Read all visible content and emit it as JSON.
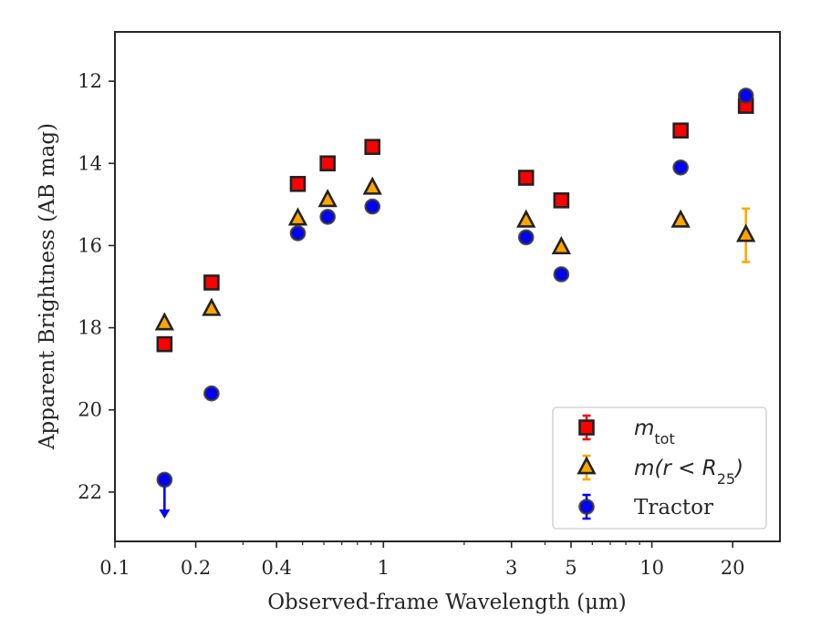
{
  "chart_data": {
    "type": "scatter",
    "title": "",
    "xlabel": "Observed-frame Wavelength (μm)",
    "ylabel": "Apparent Brightness (AB mag)",
    "xscale": "log",
    "xlim": [
      0.1,
      30
    ],
    "ylim": [
      23.2,
      10.8
    ],
    "y_inverted": true,
    "x_ticks": [
      0.1,
      0.2,
      0.4,
      1,
      3,
      5,
      10,
      20
    ],
    "x_tick_labels": [
      "0.1",
      "0.2",
      "0.4",
      "1",
      "3",
      "5",
      "10",
      "20"
    ],
    "y_ticks": [
      12,
      14,
      16,
      18,
      20,
      22
    ],
    "y_tick_labels": [
      "12",
      "14",
      "16",
      "18",
      "20",
      "22"
    ],
    "grid": false,
    "legend_position": "bottom-right",
    "series": [
      {
        "name": "m_tot",
        "legend_main": "m",
        "legend_sub": "tot",
        "legend_tail": "",
        "marker": "square",
        "color": "#ff0000",
        "edge_color": "#222222",
        "x": [
          0.153,
          0.229,
          0.48,
          0.62,
          0.91,
          3.4,
          4.6,
          12.8,
          22.4
        ],
        "y": [
          18.4,
          16.9,
          14.5,
          14.0,
          13.6,
          14.35,
          14.9,
          13.2,
          12.6
        ],
        "yerr": [
          0.03,
          0.03,
          0.02,
          0.02,
          0.02,
          0.02,
          0.02,
          0.05,
          0.08
        ]
      },
      {
        "name": "m(r < R25)",
        "legend_main": "m(r < R",
        "legend_sub": "25",
        "legend_tail": ")",
        "marker": "triangle",
        "color": "#ffa500",
        "edge_color": "#222222",
        "x": [
          0.153,
          0.229,
          0.48,
          0.62,
          0.91,
          3.4,
          4.6,
          12.8,
          22.4
        ],
        "y": [
          17.9,
          17.55,
          15.35,
          14.9,
          14.6,
          15.4,
          16.05,
          15.4,
          15.75
        ],
        "yerr": [
          0.03,
          0.03,
          0.02,
          0.02,
          0.02,
          0.02,
          0.02,
          0.1,
          0.65
        ]
      },
      {
        "name": "Tractor",
        "legend_main": "Tractor",
        "legend_sub": "",
        "legend_tail": "",
        "marker": "circle",
        "color": "#0000ff",
        "edge_color": "#333333",
        "x": [
          0.153,
          0.229,
          0.48,
          0.62,
          0.91,
          3.4,
          4.6,
          12.8,
          22.4
        ],
        "y": [
          21.7,
          19.6,
          15.7,
          15.3,
          15.05,
          15.8,
          16.7,
          14.1,
          12.35
        ],
        "yerr": [
          0.03,
          0.03,
          0.02,
          0.02,
          0.02,
          0.02,
          0.02,
          0.02,
          0.05
        ],
        "upper_limit": [
          true,
          false,
          false,
          false,
          false,
          false,
          false,
          false,
          false
        ]
      }
    ]
  }
}
